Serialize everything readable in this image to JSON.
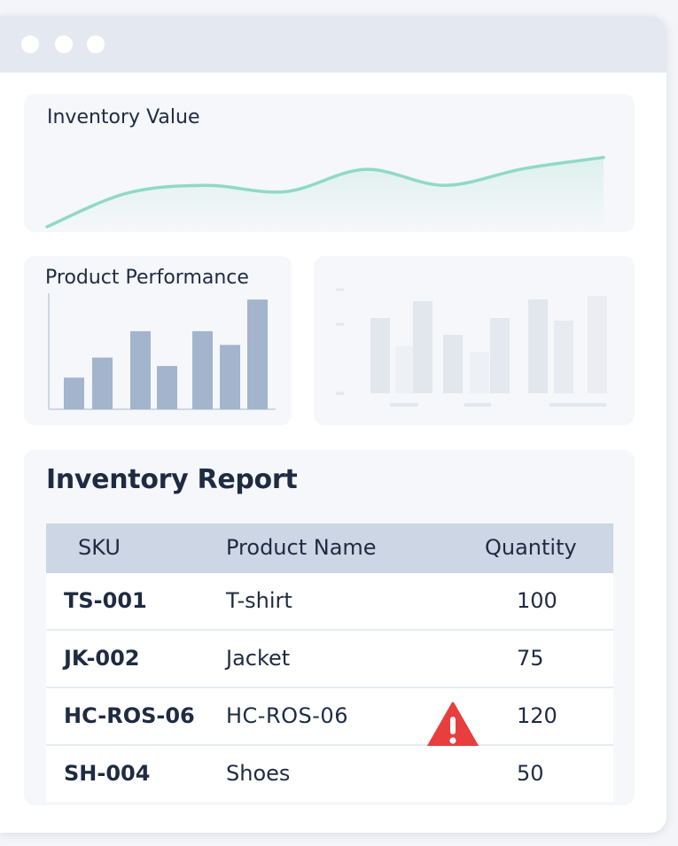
{
  "window": {
    "controls": [
      "window-dot",
      "window-dot",
      "window-dot"
    ]
  },
  "inventory_value": {
    "title": "Inventory Value",
    "line_color": "#8fd9c7"
  },
  "product_performance": {
    "title": "Product Performance",
    "bar_color": "#a3b4cd"
  },
  "chart_data": [
    {
      "type": "area",
      "title": "Inventory Value",
      "x": [
        0,
        1,
        2,
        3,
        4,
        5,
        6,
        7
      ],
      "values": [
        0.0,
        0.42,
        0.52,
        0.44,
        0.72,
        0.52,
        0.73,
        0.87
      ],
      "ylim": [
        0,
        1
      ],
      "grid": false
    },
    {
      "type": "bar",
      "title": "Product Performance",
      "categories": [
        "",
        "",
        "",
        "",
        "",
        "",
        "",
        ""
      ],
      "values": [
        30,
        49,
        74,
        41,
        74,
        61,
        104,
        0
      ],
      "ylim": [
        0,
        110
      ],
      "grid": false
    },
    {
      "type": "bar",
      "title": "",
      "categories": [
        "",
        "",
        "",
        "",
        "",
        "",
        "",
        "",
        ""
      ],
      "values": [
        85,
        53,
        104,
        66,
        47,
        85,
        106,
        82,
        110
      ],
      "ylim": [
        0,
        120
      ],
      "grid": false
    }
  ],
  "report": {
    "title": "Inventory Report",
    "columns": [
      "SKU",
      "Product Name",
      "Quantity"
    ],
    "rows": [
      {
        "sku": "TS-001",
        "name": "T-shirt",
        "quantity": "100",
        "warning": false
      },
      {
        "sku": "JK-002",
        "name": "Jacket",
        "quantity": "75",
        "warning": false
      },
      {
        "sku": "HC-ROS-06",
        "name": "HC-ROS-06",
        "quantity": "120",
        "warning": true
      },
      {
        "sku": "SH-004",
        "name": "Shoes",
        "quantity": "50",
        "warning": false
      }
    ],
    "warning_icon": "warning-triangle-icon",
    "warning_color": "#e83e3e"
  }
}
